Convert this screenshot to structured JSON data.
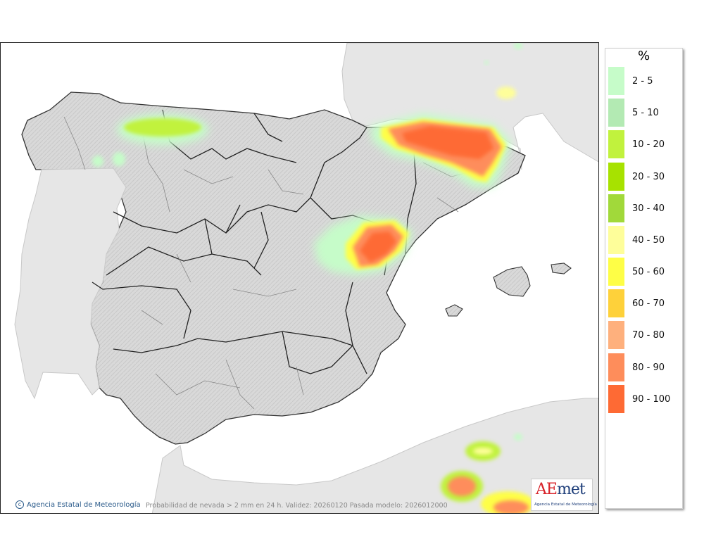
{
  "map": {
    "caption": "Probabilidad de nevada > 2 mm en 24 h. Validez: 20260120 Pasada modelo: 2026012000",
    "credit": "Agencia Estatal de Meteorología",
    "logo": {
      "brand_lead": "A",
      "brand_accent": "E",
      "brand_tail": "met",
      "subtitle": "Agencia Estatal de Meteorología"
    }
  },
  "legend": {
    "unit": "%",
    "items": [
      {
        "label": "2 - 5",
        "color": "#c6fcc9"
      },
      {
        "label": "5 - 10",
        "color": "#b3eab3"
      },
      {
        "label": "10 - 20",
        "color": "#c1f23d"
      },
      {
        "label": "20 - 30",
        "color": "#a7e200"
      },
      {
        "label": "30 - 40",
        "color": "#a1d93a"
      },
      {
        "label": "40 - 50",
        "color": "#fefe9a"
      },
      {
        "label": "50 - 60",
        "color": "#fefe46"
      },
      {
        "label": "60 - 70",
        "color": "#fed13a"
      },
      {
        "label": "70 - 80",
        "color": "#feb07d"
      },
      {
        "label": "80 - 90",
        "color": "#fe8d5b"
      },
      {
        "label": "90 - 100",
        "color": "#fe6a34"
      }
    ]
  }
}
